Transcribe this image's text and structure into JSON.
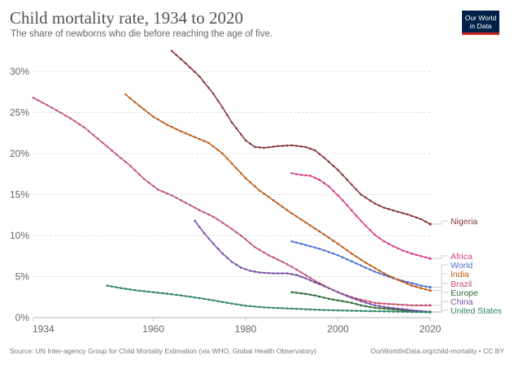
{
  "header": {
    "title": "Child mortality rate, 1934 to 2020",
    "subtitle": "The share of newborns who die before reaching the age of five.",
    "logo_line1": "Our World",
    "logo_line2": "in Data"
  },
  "footer": {
    "source": "Source: UN Inter-agency Group for Child Mortality Estimation (via WHO, Global Health Observatory)",
    "link": "OurWorldInData.org/child-mortality • CC BY"
  },
  "chart_data": {
    "type": "line",
    "title": "Child mortality rate, 1934 to 2020",
    "subtitle": "The share of newborns who die before reaching the age of five.",
    "xlabel": "",
    "ylabel": "",
    "xlim": [
      1934,
      2020
    ],
    "ylim": [
      0,
      30
    ],
    "x_ticks": [
      1934,
      1960,
      1980,
      2000,
      2020
    ],
    "y_ticks": [
      0,
      5,
      10,
      15,
      20,
      25,
      30
    ],
    "y_tick_labels": [
      "0%",
      "5%",
      "10%",
      "15%",
      "20%",
      "25%",
      "30%"
    ],
    "grid": "horizontal-dashed",
    "legend": "right-end-labels",
    "series": [
      {
        "name": "Nigeria",
        "color": "#883039",
        "points": [
          [
            1964,
            32.5
          ],
          [
            1967,
            31
          ],
          [
            1970,
            29.4
          ],
          [
            1973,
            27.3
          ],
          [
            1975,
            25.6
          ],
          [
            1977,
            23.8
          ],
          [
            1980,
            21.6
          ],
          [
            1982,
            20.8
          ],
          [
            1984,
            20.7
          ],
          [
            1987,
            20.9
          ],
          [
            1990,
            21.0
          ],
          [
            1993,
            20.8
          ],
          [
            1995,
            20.4
          ],
          [
            1997,
            19.5
          ],
          [
            2000,
            18.0
          ],
          [
            2003,
            16.2
          ],
          [
            2005,
            15.0
          ],
          [
            2008,
            13.9
          ],
          [
            2010,
            13.4
          ],
          [
            2013,
            12.9
          ],
          [
            2015,
            12.6
          ],
          [
            2018,
            12.0
          ],
          [
            2020,
            11.4
          ]
        ]
      },
      {
        "name": "Africa",
        "color": "#d73c86",
        "points": [
          [
            1990,
            17.6
          ],
          [
            1992,
            17.4
          ],
          [
            1994,
            17.3
          ],
          [
            1996,
            16.8
          ],
          [
            1998,
            16.0
          ],
          [
            2000,
            14.9
          ],
          [
            2002,
            13.7
          ],
          [
            2004,
            12.4
          ],
          [
            2006,
            11.2
          ],
          [
            2008,
            10.1
          ],
          [
            2010,
            9.3
          ],
          [
            2012,
            8.7
          ],
          [
            2014,
            8.2
          ],
          [
            2016,
            7.8
          ],
          [
            2018,
            7.5
          ],
          [
            2020,
            7.2
          ]
        ]
      },
      {
        "name": "World",
        "color": "#4c6fd1",
        "points": [
          [
            1990,
            9.3
          ],
          [
            1992,
            9.0
          ],
          [
            1994,
            8.7
          ],
          [
            1996,
            8.4
          ],
          [
            1998,
            8.0
          ],
          [
            2000,
            7.6
          ],
          [
            2002,
            7.1
          ],
          [
            2004,
            6.6
          ],
          [
            2006,
            6.1
          ],
          [
            2008,
            5.6
          ],
          [
            2010,
            5.2
          ],
          [
            2012,
            4.8
          ],
          [
            2014,
            4.5
          ],
          [
            2016,
            4.2
          ],
          [
            2018,
            3.9
          ],
          [
            2020,
            3.7
          ]
        ]
      },
      {
        "name": "India",
        "color": "#c15065",
        "points": []
      },
      {
        "name": "Brazil",
        "color": "#c4526e",
        "points": [
          [
            1934,
            26.8
          ],
          [
            1938,
            25.6
          ],
          [
            1942,
            24.3
          ],
          [
            1945,
            23.2
          ],
          [
            1948,
            21.8
          ],
          [
            1952,
            19.9
          ],
          [
            1955,
            18.5
          ],
          [
            1958,
            16.9
          ],
          [
            1961,
            15.6
          ],
          [
            1964,
            14.9
          ],
          [
            1967,
            14.0
          ],
          [
            1970,
            13.1
          ],
          [
            1973,
            12.3
          ],
          [
            1976,
            11.2
          ],
          [
            1979,
            10.0
          ],
          [
            1982,
            8.6
          ],
          [
            1985,
            7.6
          ],
          [
            1988,
            6.8
          ],
          [
            1990,
            6.2
          ],
          [
            1993,
            5.2
          ],
          [
            1995,
            4.5
          ],
          [
            1998,
            3.6
          ],
          [
            2000,
            3.1
          ],
          [
            2003,
            2.5
          ],
          [
            2005,
            2.2
          ],
          [
            2008,
            1.8
          ],
          [
            2010,
            1.7
          ],
          [
            2013,
            1.6
          ],
          [
            2016,
            1.5
          ],
          [
            2020,
            1.5
          ]
        ]
      },
      {
        "name": "Europe",
        "color": "#286b2d",
        "points": [
          [
            1990,
            3.1
          ],
          [
            1993,
            2.9
          ],
          [
            1995,
            2.7
          ],
          [
            1998,
            2.3
          ],
          [
            2000,
            2.1
          ],
          [
            2003,
            1.8
          ],
          [
            2005,
            1.5
          ],
          [
            2008,
            1.2
          ],
          [
            2010,
            1.1
          ],
          [
            2013,
            0.95
          ],
          [
            2015,
            0.85
          ],
          [
            2018,
            0.75
          ],
          [
            2020,
            0.7
          ]
        ]
      },
      {
        "name": "China",
        "color": "#7a4ca5",
        "points": [
          [
            1969,
            11.8
          ],
          [
            1971,
            10.3
          ],
          [
            1973,
            9.0
          ],
          [
            1975,
            7.8
          ],
          [
            1977,
            6.8
          ],
          [
            1979,
            6.1
          ],
          [
            1981,
            5.7
          ],
          [
            1983,
            5.5
          ],
          [
            1986,
            5.4
          ],
          [
            1989,
            5.4
          ],
          [
            1991,
            5.2
          ],
          [
            1993,
            4.8
          ],
          [
            1995,
            4.3
          ],
          [
            1998,
            3.6
          ],
          [
            2000,
            3.1
          ],
          [
            2003,
            2.4
          ],
          [
            2005,
            2.0
          ],
          [
            2008,
            1.5
          ],
          [
            2010,
            1.3
          ],
          [
            2013,
            1.1
          ],
          [
            2016,
            0.9
          ],
          [
            2020,
            0.7
          ]
        ]
      },
      {
        "name": "United States",
        "color": "#2c8465",
        "points": [
          [
            1950,
            3.9
          ],
          [
            1953,
            3.6
          ],
          [
            1956,
            3.35
          ],
          [
            1960,
            3.1
          ],
          [
            1964,
            2.85
          ],
          [
            1968,
            2.55
          ],
          [
            1972,
            2.2
          ],
          [
            1976,
            1.8
          ],
          [
            1980,
            1.45
          ],
          [
            1984,
            1.25
          ],
          [
            1988,
            1.15
          ],
          [
            1992,
            1.05
          ],
          [
            1996,
            0.95
          ],
          [
            2000,
            0.88
          ],
          [
            2005,
            0.82
          ],
          [
            2010,
            0.76
          ],
          [
            2015,
            0.7
          ],
          [
            2020,
            0.65
          ]
        ]
      }
    ]
  }
}
